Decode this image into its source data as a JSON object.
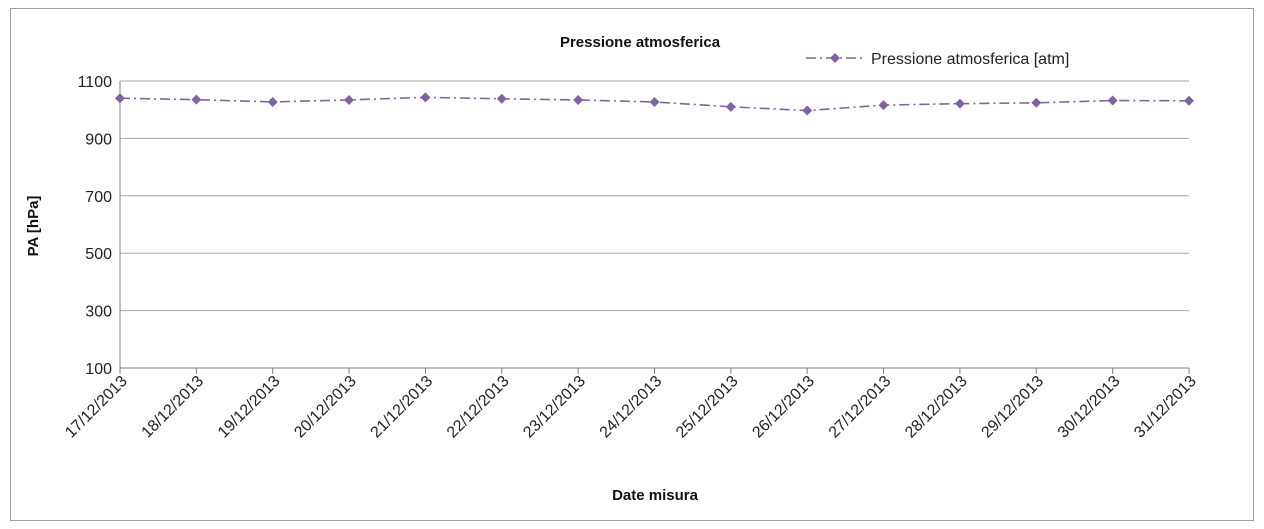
{
  "chart_data": {
    "type": "line",
    "title": "Pressione atmosferica",
    "xlabel": "Date misura",
    "ylabel": "PA [hPa]",
    "ylim": [
      100,
      1100
    ],
    "yticks": [
      "100",
      "300",
      "500",
      "700",
      "900",
      "1100"
    ],
    "categories": [
      "17/12/2013",
      "18/12/2013",
      "19/12/2013",
      "20/12/2013",
      "21/12/2013",
      "22/12/2013",
      "23/12/2013",
      "24/12/2013",
      "25/12/2013",
      "26/12/2013",
      "27/12/2013",
      "28/12/2013",
      "29/12/2013",
      "30/12/2013",
      "31/12/2013"
    ],
    "series": [
      {
        "name": "Pressione atmosferica [atm]",
        "color": "#8064a2",
        "line_style": "dash-dot",
        "marker": "diamond",
        "values": [
          1040,
          1035,
          1027,
          1034,
          1043,
          1038,
          1034,
          1027,
          1010,
          997,
          1016,
          1021,
          1024,
          1032,
          1031
        ]
      }
    ],
    "grid": "horizontal",
    "legend_position": "top-right"
  }
}
